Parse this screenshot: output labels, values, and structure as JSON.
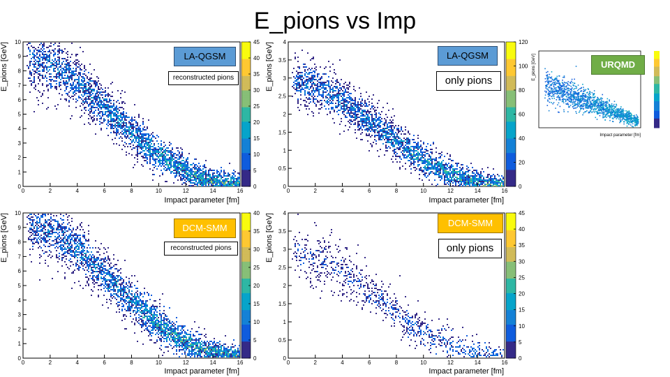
{
  "slide": {
    "title": "E_pions vs Imp"
  },
  "colors": {
    "palette": [
      "#352a87",
      "#0f5cdd",
      "#1481d6",
      "#06a4ca",
      "#2eb7a4",
      "#87bf77",
      "#d1bb59",
      "#fec832",
      "#f9fb0e"
    ]
  },
  "chart_data": [
    {
      "id": "p1",
      "type": "heatmap",
      "xlabel": "Impact parameter [fm]",
      "ylabel": "E_pions [GeV]",
      "xlim": [
        0,
        16
      ],
      "ylim": [
        0,
        10
      ],
      "x_ticks": [
        "0",
        "2",
        "4",
        "6",
        "8",
        "10",
        "12",
        "14",
        "16"
      ],
      "y_ticks": [
        "0",
        "1",
        "2",
        "3",
        "4",
        "5",
        "6",
        "7",
        "8",
        "9",
        "10"
      ],
      "z_ticks": [
        "0",
        "5",
        "10",
        "15",
        "20",
        "25",
        "30",
        "35",
        "40",
        "45"
      ],
      "zmax": 45,
      "band": {
        "b_start": 0.5,
        "b_end": 15.5,
        "e_start": 8.8,
        "e_end": 0.25,
        "width": 0.9,
        "density": 1.0
      },
      "labels": {
        "model": "LA-QGSM",
        "note": "reconstructed pions"
      }
    },
    {
      "id": "p2",
      "type": "heatmap",
      "xlabel": "Impact parameter [fm]",
      "ylabel": "E_pions [GeV]",
      "xlim": [
        0,
        16
      ],
      "ylim": [
        0,
        4
      ],
      "x_ticks": [
        "0",
        "2",
        "4",
        "6",
        "8",
        "10",
        "12",
        "14",
        "16"
      ],
      "y_ticks": [
        "0",
        "0.5",
        "1",
        "1.5",
        "2",
        "2.5",
        "3",
        "3.5",
        "4"
      ],
      "z_ticks": [
        "0",
        "20",
        "40",
        "60",
        "80",
        "100",
        "120"
      ],
      "zmax": 120,
      "band": {
        "b_start": 0.5,
        "b_end": 15.5,
        "e_start": 2.9,
        "e_end": 0.08,
        "width": 0.3,
        "density": 1.0
      },
      "labels": {
        "model": "LA-QGSM",
        "note": "only pions"
      }
    },
    {
      "id": "p3",
      "type": "heatmap",
      "xlabel": "Impact parameter [fm]",
      "ylabel": "E_pions [GeV]",
      "xlim": [
        0,
        16
      ],
      "ylim": [
        0,
        10
      ],
      "x_ticks": [
        "0",
        "2",
        "4",
        "6",
        "8",
        "10",
        "12",
        "14",
        "16"
      ],
      "y_ticks": [
        "0",
        "1",
        "2",
        "3",
        "4",
        "5",
        "6",
        "7",
        "8",
        "9",
        "10"
      ],
      "z_ticks": [
        "0",
        "5",
        "10",
        "15",
        "20",
        "25",
        "30",
        "35",
        "40"
      ],
      "zmax": 40,
      "band": {
        "b_start": 0.5,
        "b_end": 15.5,
        "e_start": 9.2,
        "e_end": 0.25,
        "width": 0.9,
        "density": 1.0
      },
      "labels": {
        "model": "DCM-SMM",
        "note": "reconstructed pions"
      }
    },
    {
      "id": "p4",
      "type": "heatmap",
      "xlabel": "Impact parameter [fm]",
      "ylabel": "E_pions [GeV]",
      "xlim": [
        0,
        16
      ],
      "ylim": [
        0,
        4
      ],
      "x_ticks": [
        "0",
        "2",
        "4",
        "6",
        "8",
        "10",
        "12",
        "14",
        "16"
      ],
      "y_ticks": [
        "0",
        "0.5",
        "1",
        "1.5",
        "2",
        "2.5",
        "3",
        "3.5",
        "4"
      ],
      "z_ticks": [
        "0",
        "5",
        "10",
        "15",
        "20",
        "25",
        "30",
        "35",
        "40",
        "45"
      ],
      "zmax": 45,
      "band": {
        "b_start": 0.5,
        "b_end": 15.5,
        "e_start": 2.95,
        "e_end": 0.08,
        "width": 0.32,
        "density": 0.45
      },
      "labels": {
        "model": "DCM-SMM",
        "note": "only pions"
      }
    },
    {
      "id": "p5",
      "type": "heatmap",
      "xlabel": "Impact parameter [fm]",
      "ylabel": "E_pions [GeV]",
      "labels": {
        "model": "URQMD"
      }
    }
  ]
}
